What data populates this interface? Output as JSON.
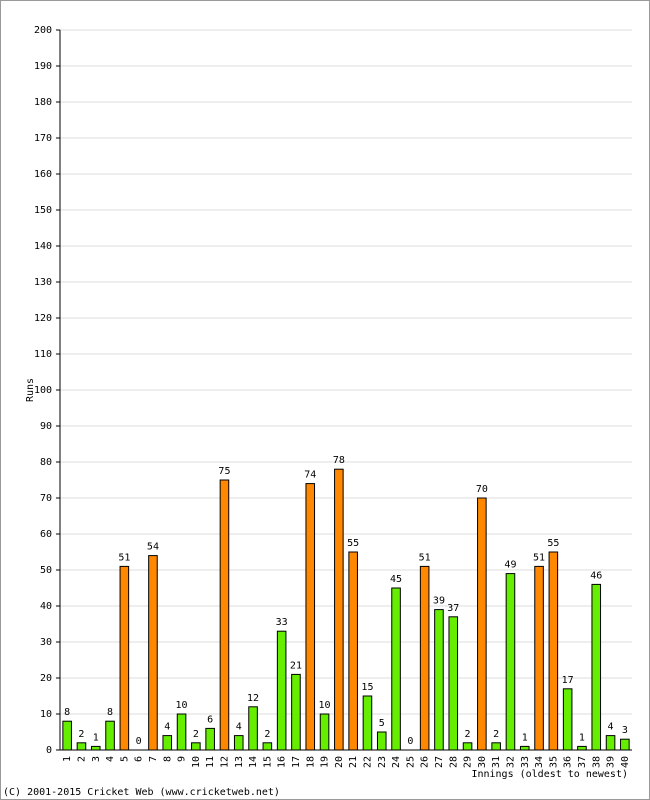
{
  "chart_data": {
    "type": "bar",
    "y_label": "Runs",
    "x_label": "Innings (oldest to newest)",
    "footer": "(C) 2001-2015 Cricket Web (www.cricketweb.net)",
    "categories": [
      "1",
      "2",
      "3",
      "4",
      "5",
      "6",
      "7",
      "8",
      "9",
      "10",
      "11",
      "12",
      "13",
      "14",
      "15",
      "16",
      "17",
      "18",
      "19",
      "20",
      "21",
      "22",
      "23",
      "24",
      "25",
      "26",
      "27",
      "28",
      "29",
      "30",
      "31",
      "32",
      "33",
      "34",
      "35",
      "36",
      "37",
      "38",
      "39",
      "40"
    ],
    "values": [
      8,
      2,
      1,
      8,
      51,
      0,
      54,
      4,
      10,
      2,
      6,
      75,
      4,
      12,
      2,
      33,
      21,
      74,
      10,
      78,
      55,
      15,
      5,
      45,
      0,
      51,
      39,
      37,
      2,
      70,
      2,
      49,
      1,
      51,
      55,
      17,
      1,
      46,
      4,
      3
    ],
    "colors": [
      "#66ee00",
      "#66ee00",
      "#66ee00",
      "#66ee00",
      "#ff8800",
      "#66ee00",
      "#ff8800",
      "#66ee00",
      "#66ee00",
      "#66ee00",
      "#66ee00",
      "#ff8800",
      "#66ee00",
      "#66ee00",
      "#66ee00",
      "#66ee00",
      "#66ee00",
      "#ff8800",
      "#66ee00",
      "#ff8800",
      "#ff8800",
      "#66ee00",
      "#66ee00",
      "#66ee00",
      "#66ee00",
      "#ff8800",
      "#66ee00",
      "#66ee00",
      "#66ee00",
      "#ff8800",
      "#66ee00",
      "#66ee00",
      "#66ee00",
      "#ff8800",
      "#ff8800",
      "#66ee00",
      "#66ee00",
      "#66ee00",
      "#66ee00",
      "#66ee00"
    ],
    "ylim": [
      0,
      200
    ],
    "yticks": [
      0,
      10,
      20,
      30,
      40,
      50,
      60,
      70,
      80,
      90,
      100,
      110,
      120,
      130,
      140,
      150,
      160,
      170,
      180,
      190,
      200
    ],
    "grid": true
  }
}
